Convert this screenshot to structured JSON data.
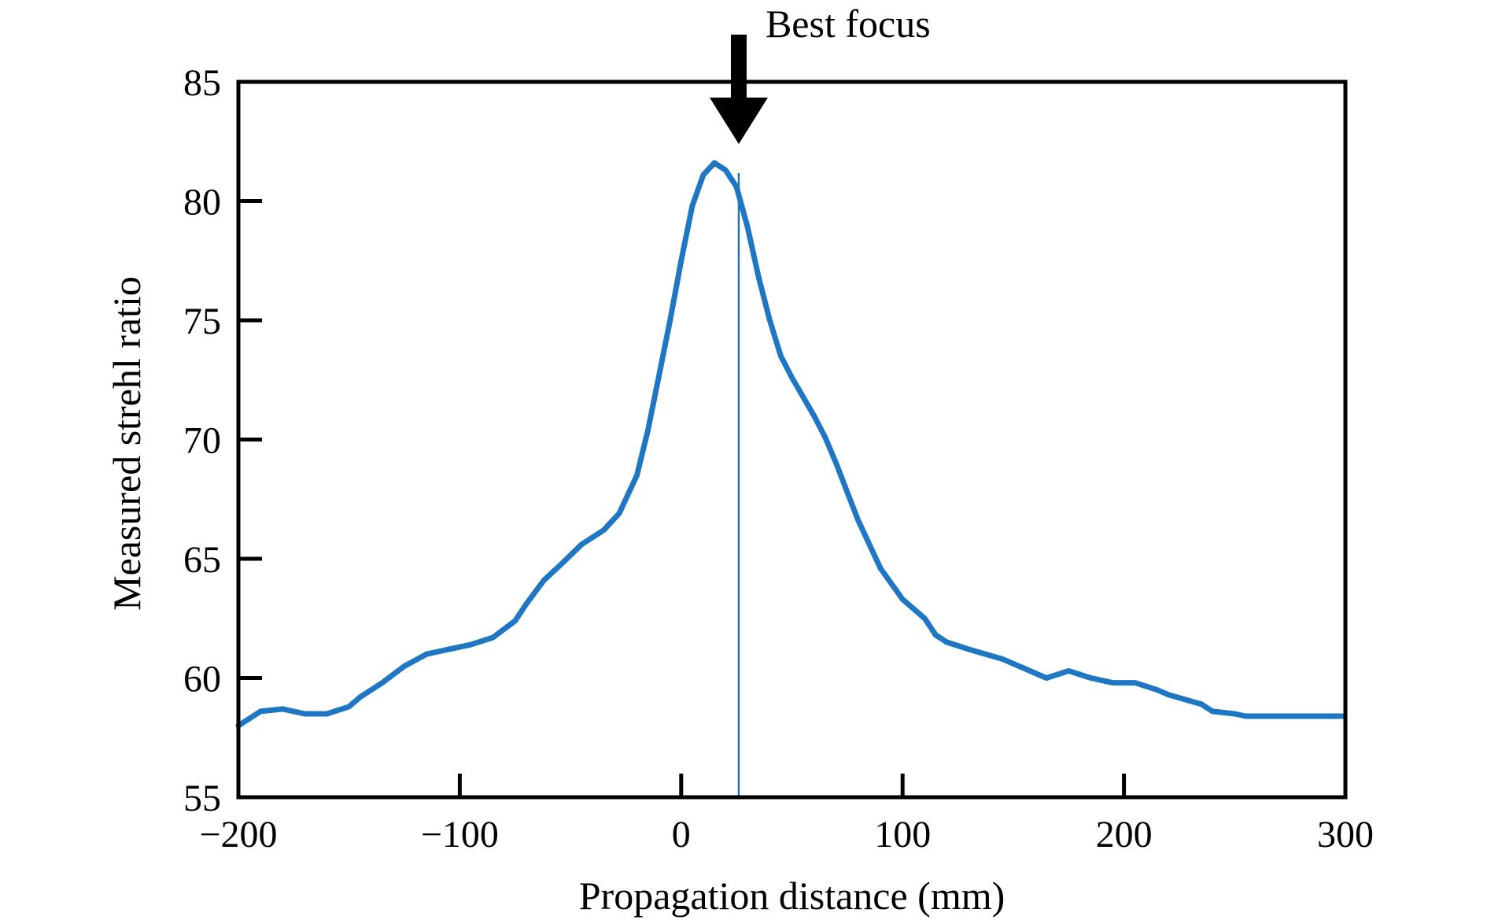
{
  "chart_data": {
    "type": "line",
    "title": "",
    "xlabel": "Propagation distance (mm)",
    "ylabel": "Measured strehl ratio",
    "xlim": [
      -200,
      300
    ],
    "ylim": [
      55,
      85
    ],
    "xticks": [
      -200,
      -100,
      0,
      100,
      200,
      300
    ],
    "yticks": [
      55,
      60,
      65,
      70,
      75,
      80,
      85
    ],
    "xtick_labels": [
      "−200",
      "−100",
      "0",
      "100",
      "200",
      "300"
    ],
    "ytick_labels": [
      "55",
      "60",
      "65",
      "70",
      "75",
      "80",
      "85"
    ],
    "grid": false,
    "legend": "none",
    "series_color": "#1f77c4",
    "x": [
      -200,
      -190,
      -180,
      -170,
      -160,
      -150,
      -145,
      -135,
      -125,
      -115,
      -105,
      -95,
      -85,
      -75,
      -70,
      -62,
      -55,
      -45,
      -35,
      -28,
      -20,
      -15,
      -10,
      -5,
      0,
      5,
      10,
      15,
      20,
      25,
      30,
      35,
      40,
      45,
      50,
      55,
      60,
      65,
      70,
      75,
      80,
      90,
      100,
      110,
      115,
      120,
      130,
      145,
      155,
      165,
      175,
      185,
      195,
      200,
      205,
      215,
      220,
      235,
      240,
      250,
      255,
      265,
      275,
      285,
      295,
      299
    ],
    "y": [
      58.0,
      58.6,
      58.7,
      58.5,
      58.5,
      58.8,
      59.2,
      59.8,
      60.5,
      61.0,
      61.2,
      61.4,
      61.7,
      62.4,
      63.1,
      64.1,
      64.7,
      65.6,
      66.2,
      66.9,
      68.5,
      70.4,
      72.7,
      75.0,
      77.5,
      79.8,
      81.1,
      81.6,
      81.3,
      80.6,
      78.9,
      76.8,
      75.0,
      73.5,
      72.6,
      71.8,
      71.0,
      70.1,
      69.0,
      67.8,
      66.6,
      64.6,
      63.3,
      62.5,
      61.8,
      61.5,
      61.2,
      60.8,
      60.4,
      60.0,
      60.3,
      60.0,
      59.8,
      59.8,
      59.8,
      59.5,
      59.3,
      58.9,
      58.6,
      58.5,
      58.4,
      58.4,
      58.4,
      58.4,
      58.4,
      58.4
    ],
    "reference_line": {
      "x": 26,
      "color": "#2a6fb0"
    },
    "annotation": {
      "text": "Best focus",
      "x": 26
    }
  }
}
